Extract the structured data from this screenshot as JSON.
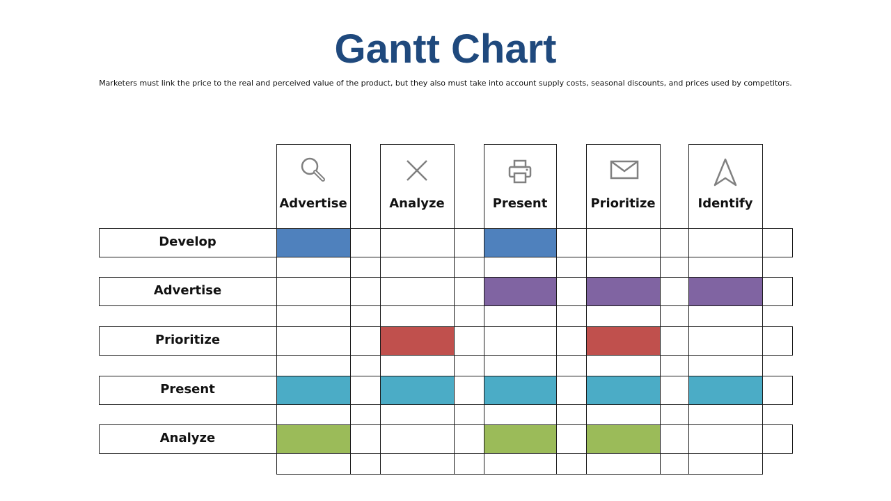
{
  "title": "Gantt Chart",
  "subtitle": "Marketers must link the price to the real and perceived value of the product, but they also must take into account supply costs, seasonal discounts, and prices used by competitors.",
  "columns": [
    {
      "label": "Advertise",
      "icon": "search-icon"
    },
    {
      "label": "Analyze",
      "icon": "close-icon"
    },
    {
      "label": "Present",
      "icon": "printer-icon"
    },
    {
      "label": "Prioritize",
      "icon": "envelope-icon"
    },
    {
      "label": "Identify",
      "icon": "navigation-arrow-icon"
    }
  ],
  "rows": [
    {
      "label": "Develop",
      "color": "#4f81bd",
      "filled": [
        true,
        false,
        true,
        false,
        false
      ]
    },
    {
      "label": "Advertise",
      "color": "#8064a2",
      "filled": [
        false,
        false,
        true,
        true,
        true
      ]
    },
    {
      "label": "Prioritize",
      "color": "#c0504d",
      "filled": [
        false,
        true,
        false,
        true,
        false
      ]
    },
    {
      "label": "Present",
      "color": "#4bacc6",
      "filled": [
        true,
        true,
        true,
        true,
        true
      ]
    },
    {
      "label": "Analyze",
      "color": "#9bbb59",
      "filled": [
        true,
        false,
        true,
        true,
        false
      ]
    }
  ],
  "colors": {
    "title": "#1f497d",
    "icon": "#808080",
    "grid": "#1a1a1a"
  }
}
